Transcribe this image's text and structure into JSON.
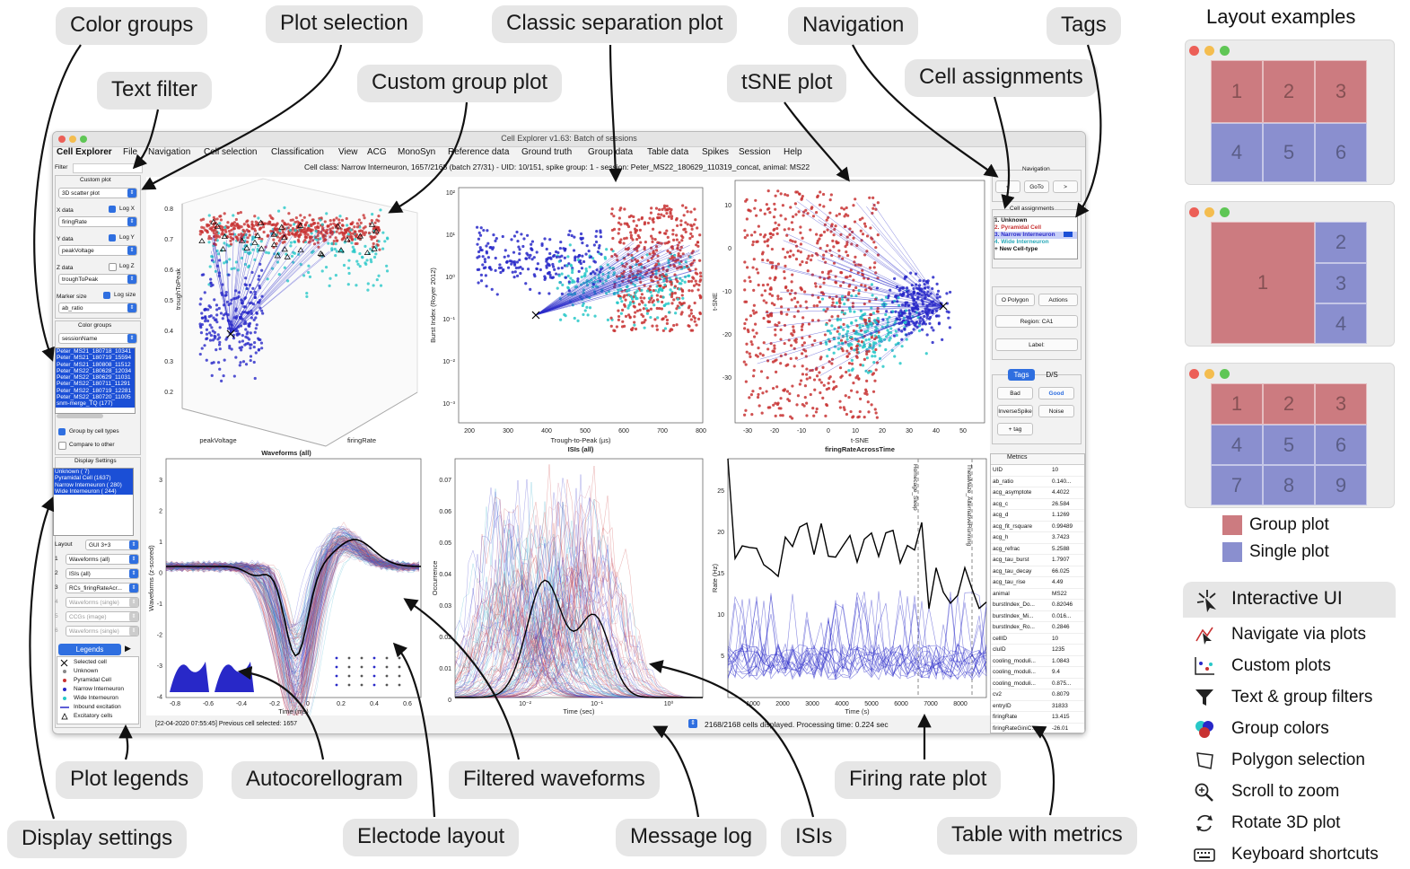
{
  "callouts": {
    "color_groups": "Color groups",
    "plot_selection": "Plot selection",
    "classic_separation_plot": "Classic separation plot",
    "navigation": "Navigation",
    "tags": "Tags",
    "text_filter": "Text filter",
    "custom_group_plot": "Custom group plot",
    "tsne_plot": "tSNE plot",
    "cell_assignments": "Cell assignments",
    "plot_legends": "Plot legends",
    "autocorellogram": "Autocorellogram",
    "filtered_waveforms": "Filtered waveforms",
    "firing_rate_plot": "Firing rate plot",
    "display_settings": "Display settings",
    "electode_layout": "Electode layout",
    "message_log": "Message log",
    "isis": "ISIs",
    "table_with_metrics": "Table with metrics"
  },
  "window": {
    "title": "Cell Explorer v1.63: Batch of sessions",
    "menu": [
      "Cell Explorer",
      "File",
      "Navigation",
      "Cell selection",
      "Classification",
      "View",
      "ACG",
      "MonoSyn",
      "Reference data",
      "Ground truth",
      "Group data",
      "Table data",
      "Spikes",
      "Session",
      "Help"
    ],
    "info_line": "Cell class: Narrow Interneuron, 1657/2168 (batch 27/31) - UID: 10/151, spike group: 1 - session: Peter_MS22_180629_110319_concat, animal: MS22",
    "message_log": "[22-04-2020 07:55:45] Previous cell selected: 1657",
    "status": "2168/2168 cells displayed. Processing time: 0.224 sec"
  },
  "left_panel": {
    "filter_label": "Filter",
    "custom_plot_title": "Custom plot",
    "plot_type": "3D scatter plot",
    "x_data_label": "X data",
    "x_data": "firingRate",
    "log_x": "Log X",
    "y_data_label": "Y data",
    "y_data": "peakVoltage",
    "log_y": "Log Y",
    "z_data_label": "Z data",
    "z_data": "troughToPeak",
    "log_z": "Log Z",
    "marker_size_label": "Marker size",
    "marker_size": "ab_ratio",
    "log_size": "Log size",
    "color_groups_title": "Color groups",
    "color_group": "sessionName",
    "sessions": [
      "Peter_MS21_180718_10341",
      "Peter_MS21_180719_15594",
      "Peter_MS21_180808_11512",
      "Peter_MS22_180628_12034",
      "Peter_MS22_180629_11031",
      "Peter_MS22_180711_11291",
      "Peter_MS22_180719_12281",
      "Peter_MS22_180720_11005",
      "snm-merge_TQ (177)"
    ],
    "group_by_cell_types": "Group by cell types",
    "compare_to_other": "Compare to other",
    "display_settings_title": "Display Settings",
    "cell_types": [
      "Unknown ( 7)",
      "Pyramidal Cell (1637)",
      "Narrow Interneuron ( 280)",
      "Wide Interneuron ( 244)"
    ],
    "layout_label": "Layout",
    "layout_value": "GUI 3+3",
    "plot_rows": [
      {
        "n": "1",
        "v": "Waveforms (all)"
      },
      {
        "n": "2",
        "v": "ISIs (all)"
      },
      {
        "n": "3",
        "v": "RCs_firingRateAcr..."
      },
      {
        "n": "4",
        "v": "Waveforms (single)"
      },
      {
        "n": "5",
        "v": "CCGs (image)"
      },
      {
        "n": "6",
        "v": "Waveforms (single)"
      }
    ],
    "legends_label": "Legends",
    "legend_items": [
      "Selected cell",
      "Unknown",
      "Pyramidal Cell",
      "Narrow Interneuron",
      "Wide Interneuron",
      "Inbound excitation",
      "Excitatory cells"
    ]
  },
  "right_panel": {
    "navigation_title": "Navigation",
    "prev": "<",
    "goto": "GoTo",
    "next": ">",
    "cell_assignments_title": "Cell assignments",
    "assignments": [
      "1. Unknown",
      "2. Pyramidal Cell",
      "3. Narrow Interneuron",
      "4. Wide Interneuron",
      "+ New Cell-type"
    ],
    "polygon": "O Polygon",
    "actions": "Actions",
    "region": "Region: CA1",
    "label": "Label:",
    "tab_tags": "Tags",
    "tab_ds": "D/S",
    "tag_buttons": [
      "Bad",
      "Good",
      "InverseSpike",
      "Noise",
      "+ tag"
    ],
    "metrics_title": "Metrics",
    "metrics": [
      [
        "UID",
        "10"
      ],
      [
        "ab_ratio",
        "0.140..."
      ],
      [
        "acg_asymptote",
        "4.4022"
      ],
      [
        "acg_c",
        "26.584"
      ],
      [
        "acg_d",
        "1.1269"
      ],
      [
        "acg_fit_rsquare",
        "0.99489"
      ],
      [
        "acg_h",
        "3.7423"
      ],
      [
        "acg_refrac",
        "5.2588"
      ],
      [
        "acg_tau_burst",
        "1.7907"
      ],
      [
        "acg_tau_decay",
        "66.025"
      ],
      [
        "acg_tau_rise",
        "4.49"
      ],
      [
        "animal",
        "MS22"
      ],
      [
        "burstIndex_Do...",
        "0.82046"
      ],
      [
        "burstIndex_Mi...",
        "0.016..."
      ],
      [
        "burstIndex_Ro...",
        "0.2846"
      ],
      [
        "cellID",
        "10"
      ],
      [
        "cluID",
        "1235"
      ],
      [
        "cooling_moduli...",
        "1.0843"
      ],
      [
        "cooling_moduli...",
        "9.4"
      ],
      [
        "cooling_moduli...",
        "0.875..."
      ],
      [
        "cv2",
        "0.8079"
      ],
      [
        "entryID",
        "31833"
      ],
      [
        "firingRate",
        "13.415"
      ],
      [
        "firingRateGiniC...",
        "-26.01"
      ],
      [
        "firingRateISI",
        "28.818"
      ]
    ]
  },
  "plots": {
    "p1": {
      "xlabel": "peakVoltage",
      "xlabel2": "firingRate",
      "ylabel": "troughToPeak",
      "title": "Waveforms (all)",
      "yticks": [
        "0.8",
        "0.7",
        "0.6",
        "0.5",
        "0.4",
        "0.3",
        "0.2"
      ]
    },
    "p2": {
      "xlabel": "Trough-to-Peak (µs)",
      "ylabel": "Burst Index (Royer 2012)",
      "title": "ISIs (all)",
      "xticks": [
        "200",
        "300",
        "400",
        "500",
        "600",
        "700",
        "800"
      ]
    },
    "p3": {
      "xlabel": "t-SNE",
      "ylabel": "t-SNE",
      "title": "firingRateAcrossTime",
      "xticks": [
        "-30",
        "-20",
        "-10",
        "0",
        "10",
        "20",
        "30",
        "40",
        "50"
      ],
      "yticks": [
        "10",
        "0",
        "-10",
        "-20",
        "-30"
      ]
    },
    "p4": {
      "xlabel": "Time (ms)",
      "ylabel": "Waveforms (z-scored)",
      "xticks": [
        "-0.8",
        "-0.6",
        "-0.4",
        "-0.2",
        "0",
        "0.2",
        "0.4",
        "0.6"
      ],
      "yticks": [
        "3",
        "2",
        "1",
        "0",
        "-1",
        "-2",
        "-3",
        "-4"
      ]
    },
    "p5": {
      "xlabel": "Time (sec)",
      "ylabel": "Occurrence",
      "yticks": [
        "0.07",
        "0.06",
        "0.05",
        "0.04",
        "0.03",
        "0.02",
        "0.01",
        "0"
      ]
    },
    "p6": {
      "xlabel": "Time (s)",
      "ylabel": "Rate (Hz)",
      "vlabel1": "Homecage_Sleep",
      "vlabel2": "ThetaMaze_AlternativeRunning",
      "xticks": [
        "1000",
        "2000",
        "3000",
        "4000",
        "5000",
        "6000",
        "7000",
        "8000"
      ],
      "yticks": [
        "25",
        "20",
        "15",
        "10",
        "5"
      ]
    }
  },
  "layout_examples": {
    "title": "Layout examples",
    "group_plot": "Group plot",
    "single_plot": "Single plot",
    "ex1": [
      "1",
      "2",
      "3",
      "4",
      "5",
      "6"
    ],
    "ex2": [
      "1",
      "2",
      "3",
      "4"
    ],
    "ex3": [
      "1",
      "2",
      "3",
      "4",
      "5",
      "6",
      "7",
      "8",
      "9"
    ]
  },
  "features": {
    "header": "Interactive UI",
    "items": [
      "Navigate via plots",
      "Custom plots",
      "Text & group filters",
      "Group colors",
      "Polygon selection",
      "Scroll to zoom",
      "Rotate 3D plot",
      "Keyboard shortcuts"
    ]
  },
  "colors": {
    "pyramidal": "#c83232",
    "narrow": "#2828c8",
    "wide": "#28c8c8",
    "group_plot": "#cc7b80",
    "single_plot": "#8a8fcf"
  }
}
